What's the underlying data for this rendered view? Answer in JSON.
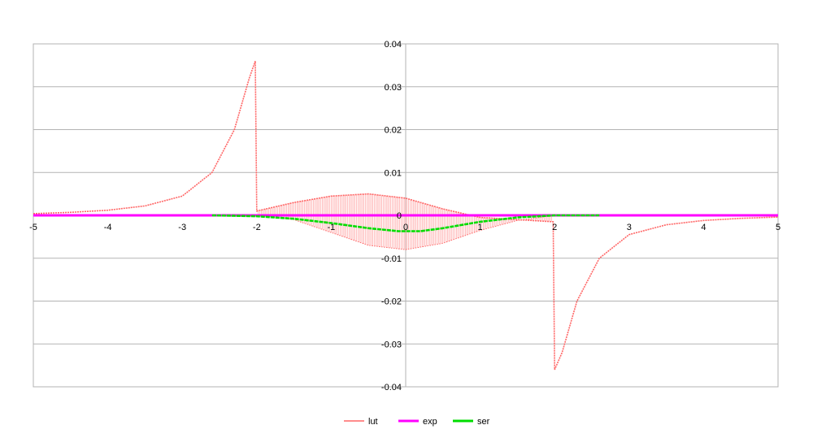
{
  "chart_data": {
    "type": "line",
    "title": "",
    "xlabel": "",
    "ylabel": "",
    "xlim": [
      -5,
      5
    ],
    "ylim": [
      -0.04,
      0.04
    ],
    "x_ticks": [
      -5,
      -4,
      -3,
      -2,
      -1,
      0,
      1,
      2,
      3,
      4,
      5
    ],
    "y_ticks": [
      0.04,
      0.03,
      0.02,
      0.01,
      0,
      -0.01,
      -0.02,
      -0.03,
      -0.04
    ],
    "grid": true,
    "legend_position": "bottom",
    "series": [
      {
        "name": "lut",
        "color": "#ff6666",
        "style": "dense-oscillating",
        "points": [
          [
            -5,
            0.0004
          ],
          [
            -4.5,
            0.0007
          ],
          [
            -4,
            0.0012
          ],
          [
            -3.5,
            0.0022
          ],
          [
            -3,
            0.0045
          ],
          [
            -2.6,
            0.01
          ],
          [
            -2.3,
            0.02
          ],
          [
            -2.1,
            0.032
          ],
          [
            -2.02,
            0.036
          ],
          [
            -2.0,
            0.001
          ],
          [
            -1.5,
            0.003
          ],
          [
            -1,
            0.0045
          ],
          [
            -0.5,
            0.005
          ],
          [
            0,
            0.004
          ],
          [
            0.5,
            0.0015
          ],
          [
            1,
            -0.0005
          ],
          [
            1.5,
            -0.001
          ],
          [
            1.98,
            -0.0015
          ],
          [
            2.0,
            -0.036
          ],
          [
            2.1,
            -0.032
          ],
          [
            2.3,
            -0.02
          ],
          [
            2.6,
            -0.01
          ],
          [
            3,
            -0.0045
          ],
          [
            3.5,
            -0.0022
          ],
          [
            4,
            -0.0012
          ],
          [
            4.5,
            -0.0007
          ],
          [
            5,
            -0.0004
          ]
        ],
        "envelope_lower": [
          [
            -2,
            0
          ],
          [
            -1.5,
            -0.001
          ],
          [
            -1,
            -0.004
          ],
          [
            -0.5,
            -0.007
          ],
          [
            0,
            -0.008
          ],
          [
            0.5,
            -0.0065
          ],
          [
            1,
            -0.0035
          ],
          [
            1.5,
            -0.0012
          ],
          [
            2,
            0
          ]
        ]
      },
      {
        "name": "exp",
        "color": "#ff00ff",
        "points": [
          [
            -5,
            0
          ],
          [
            5,
            0
          ]
        ]
      },
      {
        "name": "ser",
        "color": "#00dd00",
        "points": [
          [
            -2.6,
            0
          ],
          [
            -2,
            -0.0002
          ],
          [
            -1.5,
            -0.0008
          ],
          [
            -1,
            -0.0018
          ],
          [
            -0.5,
            -0.003
          ],
          [
            -0.1,
            -0.0037
          ],
          [
            0.2,
            -0.0037
          ],
          [
            0.5,
            -0.003
          ],
          [
            1,
            -0.0015
          ],
          [
            1.5,
            -0.0005
          ],
          [
            2,
            0
          ],
          [
            2.6,
            0
          ]
        ]
      }
    ]
  }
}
